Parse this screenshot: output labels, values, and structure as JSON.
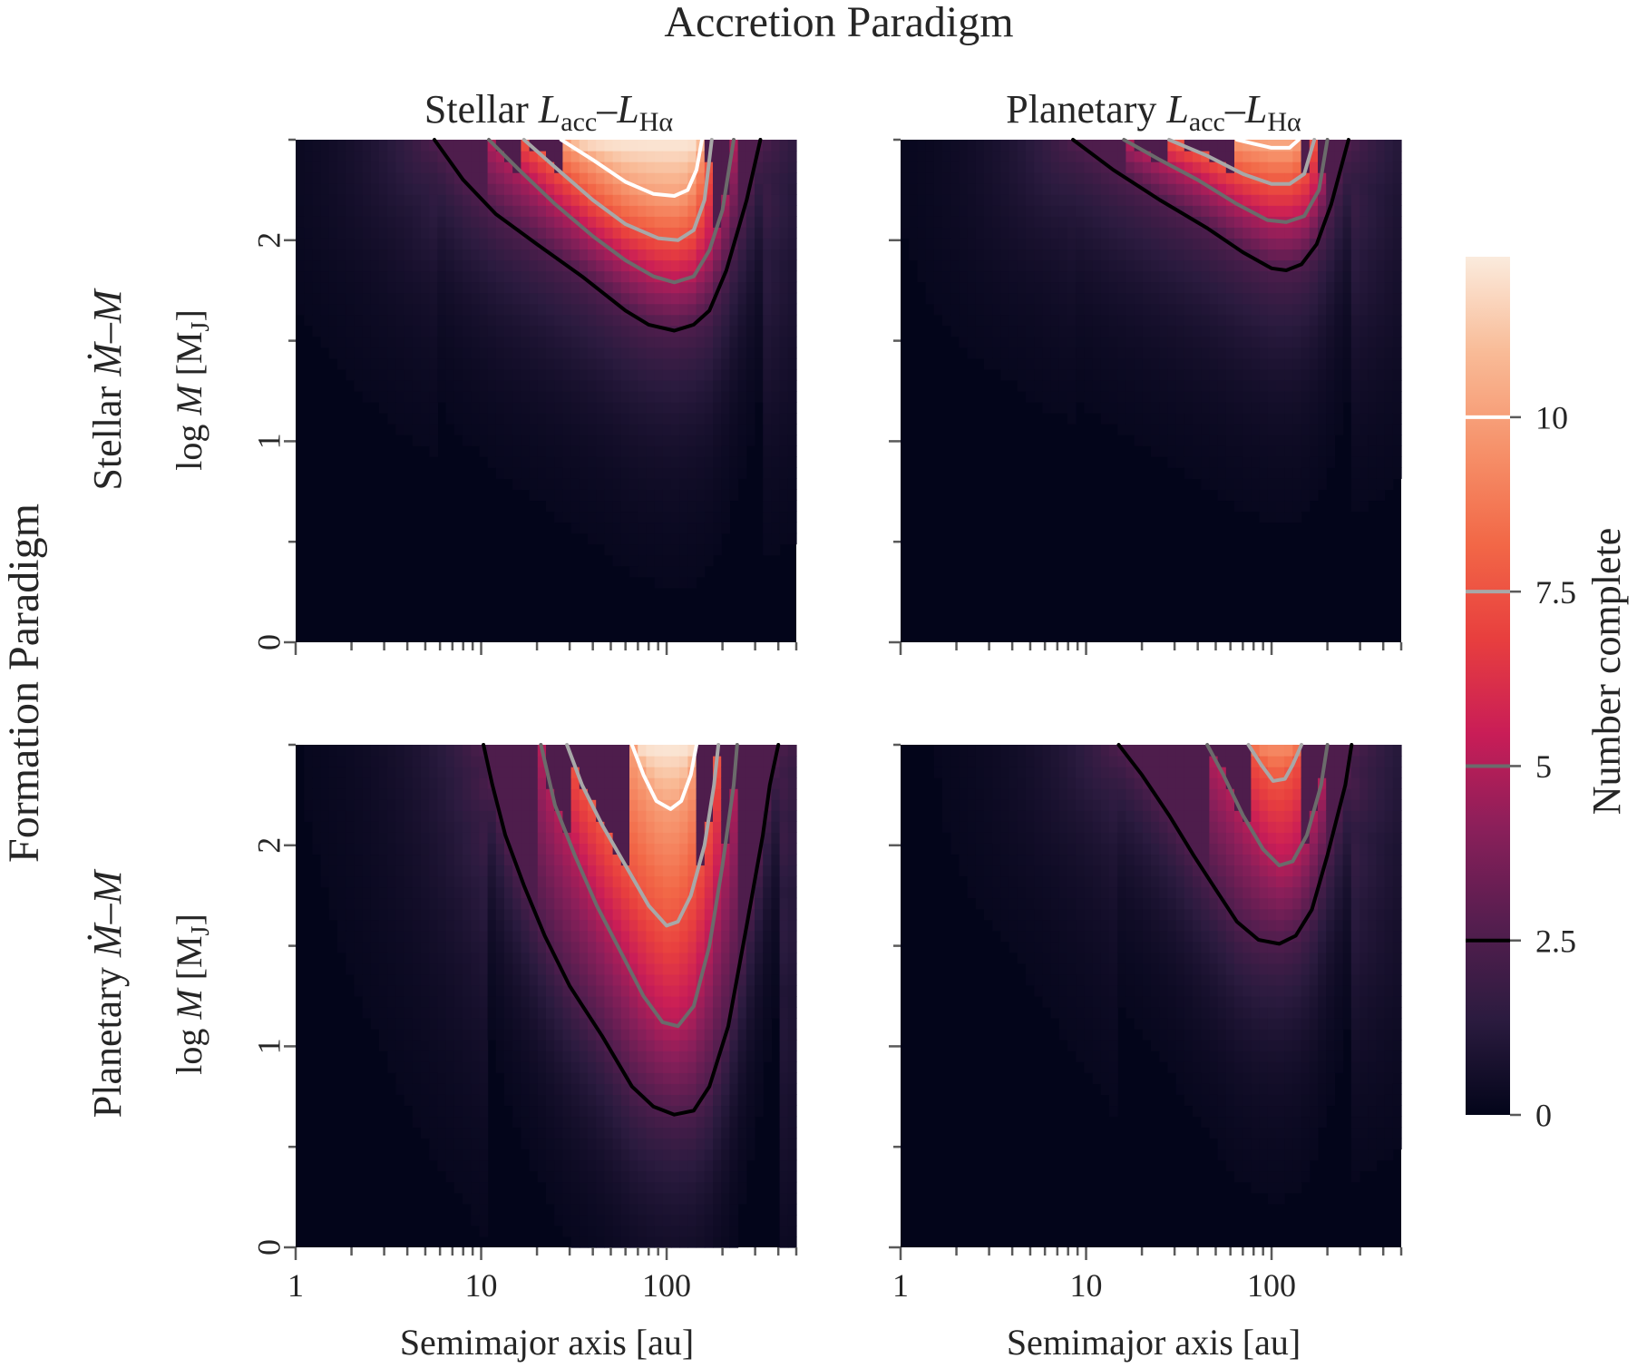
{
  "figure": {
    "suptitle": "Accretion Paradigm",
    "row_group_label": "Formation Paradigm",
    "x_unit": "[au]",
    "y_unit": "[M",
    "y_unit_subscript": "J",
    "y_unit_close": "]"
  },
  "columns": [
    {
      "prefix": "Stellar ",
      "sym1": "L",
      "sub1": "acc",
      "dash": "–",
      "sym2": "L",
      "sub2": "Hα"
    },
    {
      "prefix": "Planetary ",
      "sym1": "L",
      "sub1": "acc",
      "dash": "–",
      "sym2": "L",
      "sub2": "Hα"
    }
  ],
  "rows": [
    {
      "prefix": "Stellar ",
      "sym1": "Ṁ",
      "dash": "–",
      "sym2": "M"
    },
    {
      "prefix": "Planetary ",
      "sym1": "Ṁ",
      "dash": "–",
      "sym2": "M"
    }
  ],
  "colors": {
    "background": "#03051A",
    "contour_2_5": "#000000",
    "contour_5": "#6b6b6b",
    "contour_7_5": "#a8a8a8",
    "contour_10": "#ffffff",
    "colormap": [
      "#03051A",
      "#2B1B3F",
      "#551E4F",
      "#8A1F5A",
      "#C91D57",
      "#E83F3E",
      "#F26847",
      "#F6926B",
      "#F9BB97",
      "#FAEBDD"
    ]
  },
  "chart_data": {
    "type": "heatmap",
    "xscale": "log",
    "xlabel": "Semimajor axis [au]",
    "ylabel": "log M [M_J]",
    "xlim": [
      1,
      500
    ],
    "ylim": [
      0,
      2.5
    ],
    "x_ticks": [
      1,
      10,
      100
    ],
    "x_tick_labels": [
      "1",
      "10",
      "100"
    ],
    "y_ticks": [
      0,
      1,
      2
    ],
    "y_tick_labels": [
      "0",
      "1",
      "2"
    ],
    "colorbar": {
      "label": "Number complete",
      "range": [
        0,
        12.3
      ],
      "ticks": [
        0,
        2.5,
        5,
        7.5,
        10
      ],
      "tick_labels": [
        "0",
        "2.5",
        "5",
        "7.5",
        "10"
      ]
    },
    "contour_levels": [
      2.5,
      5,
      7.5,
      10
    ],
    "panels": [
      {
        "accretion": "Stellar L_acc–L_Hα",
        "formation": "Stellar Ṁ–M",
        "peak": 12.3,
        "contours": [
          {
            "level": 2.5,
            "points": [
              [
                5.6,
                2.5
              ],
              [
                8,
                2.3
              ],
              [
                12,
                2.13
              ],
              [
                20,
                1.98
              ],
              [
                35,
                1.82
              ],
              [
                60,
                1.65
              ],
              [
                80,
                1.58
              ],
              [
                110,
                1.55
              ],
              [
                140,
                1.58
              ],
              [
                170,
                1.65
              ],
              [
                210,
                1.85
              ],
              [
                270,
                2.2
              ],
              [
                320,
                2.5
              ]
            ]
          },
          {
            "level": 5,
            "points": [
              [
                11,
                2.5
              ],
              [
                16,
                2.35
              ],
              [
                25,
                2.18
              ],
              [
                40,
                2.02
              ],
              [
                60,
                1.9
              ],
              [
                85,
                1.82
              ],
              [
                110,
                1.79
              ],
              [
                140,
                1.82
              ],
              [
                170,
                1.95
              ],
              [
                200,
                2.15
              ],
              [
                230,
                2.5
              ]
            ]
          },
          {
            "level": 7.5,
            "points": [
              [
                17,
                2.5
              ],
              [
                26,
                2.35
              ],
              [
                40,
                2.2
              ],
              [
                60,
                2.08
              ],
              [
                90,
                2.01
              ],
              [
                115,
                2.0
              ],
              [
                140,
                2.05
              ],
              [
                160,
                2.2
              ],
              [
                175,
                2.5
              ]
            ]
          },
          {
            "level": 10,
            "points": [
              [
                27,
                2.5
              ],
              [
                40,
                2.4
              ],
              [
                60,
                2.29
              ],
              [
                85,
                2.23
              ],
              [
                110,
                2.22
              ],
              [
                130,
                2.25
              ],
              [
                145,
                2.35
              ],
              [
                155,
                2.5
              ]
            ]
          }
        ]
      },
      {
        "accretion": "Planetary L_acc–L_Hα",
        "formation": "Stellar Ṁ–M",
        "peak": 10.5,
        "contours": [
          {
            "level": 2.5,
            "points": [
              [
                8.5,
                2.5
              ],
              [
                14,
                2.35
              ],
              [
                25,
                2.2
              ],
              [
                45,
                2.06
              ],
              [
                70,
                1.94
              ],
              [
                100,
                1.86
              ],
              [
                120,
                1.85
              ],
              [
                145,
                1.88
              ],
              [
                175,
                1.98
              ],
              [
                210,
                2.18
              ],
              [
                260,
                2.5
              ]
            ]
          },
          {
            "level": 5,
            "points": [
              [
                16,
                2.5
              ],
              [
                25,
                2.4
              ],
              [
                40,
                2.3
              ],
              [
                65,
                2.18
              ],
              [
                95,
                2.1
              ],
              [
                120,
                2.09
              ],
              [
                150,
                2.12
              ],
              [
                180,
                2.25
              ],
              [
                200,
                2.5
              ]
            ]
          },
          {
            "level": 7.5,
            "points": [
              [
                28,
                2.5
              ],
              [
                45,
                2.42
              ],
              [
                70,
                2.33
              ],
              [
                100,
                2.28
              ],
              [
                125,
                2.28
              ],
              [
                150,
                2.33
              ],
              [
                170,
                2.5
              ]
            ]
          },
          {
            "level": 10,
            "points": [
              [
                65,
                2.5
              ],
              [
                80,
                2.48
              ],
              [
                100,
                2.46
              ],
              [
                125,
                2.46
              ],
              [
                140,
                2.5
              ]
            ]
          }
        ]
      },
      {
        "accretion": "Stellar L_acc–L_Hα",
        "formation": "Planetary Ṁ–M",
        "peak": 12.3,
        "contours": [
          {
            "level": 2.5,
            "points": [
              [
                10.3,
                2.5
              ],
              [
                11.5,
                2.3
              ],
              [
                13.5,
                2.05
              ],
              [
                17,
                1.8
              ],
              [
                22,
                1.55
              ],
              [
                30,
                1.3
              ],
              [
                45,
                1.05
              ],
              [
                65,
                0.8
              ],
              [
                85,
                0.7
              ],
              [
                110,
                0.66
              ],
              [
                140,
                0.68
              ],
              [
                170,
                0.8
              ],
              [
                215,
                1.1
              ],
              [
                270,
                1.6
              ],
              [
                330,
                2.05
              ],
              [
                360,
                2.3
              ],
              [
                400,
                2.5
              ]
            ]
          },
          {
            "level": 5,
            "points": [
              [
                21,
                2.5
              ],
              [
                25,
                2.2
              ],
              [
                32,
                1.95
              ],
              [
                42,
                1.7
              ],
              [
                58,
                1.45
              ],
              [
                75,
                1.25
              ],
              [
                95,
                1.12
              ],
              [
                115,
                1.1
              ],
              [
                140,
                1.2
              ],
              [
                170,
                1.5
              ],
              [
                200,
                1.9
              ],
              [
                230,
                2.3
              ],
              [
                240,
                2.5
              ]
            ]
          },
          {
            "level": 7.5,
            "points": [
              [
                29,
                2.5
              ],
              [
                35,
                2.3
              ],
              [
                45,
                2.1
              ],
              [
                60,
                1.9
              ],
              [
                80,
                1.7
              ],
              [
                100,
                1.6
              ],
              [
                115,
                1.62
              ],
              [
                135,
                1.75
              ],
              [
                160,
                2.0
              ],
              [
                180,
                2.3
              ],
              [
                190,
                2.5
              ]
            ]
          },
          {
            "level": 10,
            "points": [
              [
                65,
                2.5
              ],
              [
                75,
                2.35
              ],
              [
                88,
                2.22
              ],
              [
                105,
                2.18
              ],
              [
                120,
                2.22
              ],
              [
                135,
                2.35
              ],
              [
                145,
                2.5
              ]
            ]
          }
        ]
      },
      {
        "accretion": "Planetary L_acc–L_Hα",
        "formation": "Planetary Ṁ–M",
        "peak": 9.5,
        "contours": [
          {
            "level": 2.5,
            "points": [
              [
                15,
                2.5
              ],
              [
                20,
                2.35
              ],
              [
                28,
                2.15
              ],
              [
                38,
                1.95
              ],
              [
                50,
                1.78
              ],
              [
                65,
                1.62
              ],
              [
                85,
                1.53
              ],
              [
                110,
                1.51
              ],
              [
                135,
                1.55
              ],
              [
                165,
                1.68
              ],
              [
                200,
                1.95
              ],
              [
                250,
                2.3
              ],
              [
                270,
                2.5
              ]
            ]
          },
          {
            "level": 5,
            "points": [
              [
                45,
                2.5
              ],
              [
                55,
                2.35
              ],
              [
                70,
                2.15
              ],
              [
                90,
                1.98
              ],
              [
                110,
                1.9
              ],
              [
                130,
                1.92
              ],
              [
                155,
                2.05
              ],
              [
                185,
                2.3
              ],
              [
                200,
                2.5
              ]
            ]
          },
          {
            "level": 7.5,
            "points": [
              [
                75,
                2.5
              ],
              [
                88,
                2.4
              ],
              [
                102,
                2.32
              ],
              [
                118,
                2.33
              ],
              [
                130,
                2.4
              ],
              [
                145,
                2.5
              ]
            ]
          }
        ]
      }
    ]
  }
}
